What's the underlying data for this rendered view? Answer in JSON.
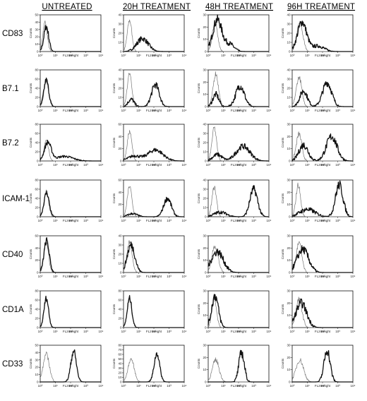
{
  "columns": [
    "UNTREATED",
    "20H TREATMENT",
    "48H TREATMENT",
    "96H TREATMENT"
  ],
  "rows": [
    "CD83",
    "B7.1",
    "B7.2",
    "ICAM-1",
    "CD40",
    "CD1A",
    "CD33"
  ],
  "axis": {
    "xlabel": "FL2-Height",
    "ylabel": "Counts",
    "xticks": [
      "10⁰",
      "10¹",
      "10²",
      "10³",
      "10⁴"
    ]
  },
  "chart_data": {
    "type": "histogram-grid",
    "x_scale": "log",
    "xlim": [
      1,
      10000
    ],
    "colors": {
      "control": "#777777",
      "stained": "#111111"
    },
    "panels": [
      [
        {
          "ymax": 50,
          "yticks": [
            0,
            10,
            20,
            30,
            40,
            50
          ],
          "ctrl": [
            {
              "mu": 0.32,
              "sd": 0.14,
              "h": 40
            }
          ],
          "stain": [
            {
              "mu": 0.4,
              "sd": 0.16,
              "h": 34
            }
          ]
        },
        {
          "ymax": 40,
          "yticks": [
            0,
            10,
            20,
            30,
            40
          ],
          "ctrl": [
            {
              "mu": 0.4,
              "sd": 0.15,
              "h": 34
            }
          ],
          "stain": [
            {
              "mu": 1.25,
              "sd": 0.38,
              "h": 14
            }
          ]
        },
        {
          "ymax": 30,
          "yticks": [
            0,
            10,
            20,
            30
          ],
          "ctrl": [
            {
              "mu": 0.45,
              "sd": 0.17,
              "h": 24
            }
          ],
          "stain": [
            {
              "mu": 0.6,
              "sd": 0.3,
              "h": 26
            },
            {
              "mu": 1.4,
              "sd": 0.3,
              "h": 6
            }
          ]
        },
        {
          "ymax": 40,
          "yticks": [
            0,
            10,
            20,
            30,
            40
          ],
          "ctrl": [
            {
              "mu": 0.5,
              "sd": 0.2,
              "h": 31
            }
          ],
          "stain": [
            {
              "mu": 0.65,
              "sd": 0.3,
              "h": 32
            },
            {
              "mu": 1.7,
              "sd": 0.4,
              "h": 6
            }
          ]
        }
      ],
      [
        {
          "ymax": 80,
          "yticks": [
            0,
            20,
            40,
            60,
            80
          ],
          "ctrl": [
            {
              "mu": 0.4,
              "sd": 0.15,
              "h": 55
            }
          ],
          "stain": [
            {
              "mu": 0.4,
              "sd": 0.16,
              "h": 58
            }
          ]
        },
        {
          "ymax": 40,
          "yticks": [
            0,
            10,
            20,
            30,
            40
          ],
          "ctrl": [
            {
              "mu": 0.4,
              "sd": 0.15,
              "h": 36
            }
          ],
          "stain": [
            {
              "mu": 0.5,
              "sd": 0.2,
              "h": 8
            },
            {
              "mu": 2.1,
              "sd": 0.25,
              "h": 24
            }
          ]
        },
        {
          "ymax": 30,
          "yticks": [
            0,
            10,
            20,
            30
          ],
          "ctrl": [
            {
              "mu": 0.5,
              "sd": 0.17,
              "h": 27
            }
          ],
          "stain": [
            {
              "mu": 0.5,
              "sd": 0.2,
              "h": 10
            },
            {
              "mu": 2.1,
              "sd": 0.28,
              "h": 17
            }
          ]
        },
        {
          "ymax": 40,
          "yticks": [
            0,
            10,
            20,
            30,
            40
          ],
          "ctrl": [
            {
              "mu": 0.45,
              "sd": 0.18,
              "h": 32
            }
          ],
          "stain": [
            {
              "mu": 0.75,
              "sd": 0.25,
              "h": 17
            },
            {
              "mu": 2.3,
              "sd": 0.3,
              "h": 26
            }
          ]
        }
      ],
      [
        {
          "ymax": 80,
          "yticks": [
            0,
            20,
            40,
            60,
            80
          ],
          "ctrl": [
            {
              "mu": 0.4,
              "sd": 0.15,
              "h": 45
            }
          ],
          "stain": [
            {
              "mu": 0.5,
              "sd": 0.22,
              "h": 40
            },
            {
              "mu": 1.6,
              "sd": 0.55,
              "h": 10
            }
          ]
        },
        {
          "ymax": 60,
          "yticks": [
            0,
            20,
            40,
            60
          ],
          "ctrl": [
            {
              "mu": 0.4,
              "sd": 0.15,
              "h": 48
            }
          ],
          "stain": [
            {
              "mu": 0.7,
              "sd": 0.4,
              "h": 8
            },
            {
              "mu": 2.1,
              "sd": 0.5,
              "h": 18
            }
          ]
        },
        {
          "ymax": 40,
          "yticks": [
            0,
            10,
            20,
            30,
            40
          ],
          "ctrl": [
            {
              "mu": 0.4,
              "sd": 0.15,
              "h": 36
            }
          ],
          "stain": [
            {
              "mu": 0.6,
              "sd": 0.3,
              "h": 7
            },
            {
              "mu": 2.3,
              "sd": 0.45,
              "h": 16
            }
          ]
        },
        {
          "ymax": 30,
          "yticks": [
            0,
            10,
            20,
            30
          ],
          "ctrl": [
            {
              "mu": 0.45,
              "sd": 0.18,
              "h": 22
            }
          ],
          "stain": [
            {
              "mu": 0.75,
              "sd": 0.3,
              "h": 13
            },
            {
              "mu": 2.6,
              "sd": 0.35,
              "h": 20
            }
          ]
        }
      ],
      [
        {
          "ymax": 80,
          "yticks": [
            0,
            20,
            40,
            60,
            80
          ],
          "ctrl": [
            {
              "mu": 0.4,
              "sd": 0.15,
              "h": 55
            }
          ],
          "stain": [
            {
              "mu": 0.42,
              "sd": 0.17,
              "h": 52
            }
          ]
        },
        {
          "ymax": 60,
          "yticks": [
            0,
            20,
            40,
            60
          ],
          "ctrl": [
            {
              "mu": 0.4,
              "sd": 0.15,
              "h": 50
            }
          ],
          "stain": [
            {
              "mu": 0.6,
              "sd": 0.3,
              "h": 5
            },
            {
              "mu": 2.9,
              "sd": 0.25,
              "h": 30
            }
          ]
        },
        {
          "ymax": 40,
          "yticks": [
            0,
            10,
            20,
            30,
            40
          ],
          "ctrl": [
            {
              "mu": 0.4,
              "sd": 0.15,
              "h": 32
            }
          ],
          "stain": [
            {
              "mu": 0.8,
              "sd": 0.4,
              "h": 5
            },
            {
              "mu": 3.0,
              "sd": 0.25,
              "h": 30
            }
          ]
        },
        {
          "ymax": 30,
          "yticks": [
            0,
            10,
            20,
            30
          ],
          "ctrl": [
            {
              "mu": 0.4,
              "sd": 0.15,
              "h": 26
            }
          ],
          "stain": [
            {
              "mu": 1.0,
              "sd": 0.5,
              "h": 6
            },
            {
              "mu": 3.1,
              "sd": 0.25,
              "h": 26
            }
          ]
        }
      ],
      [
        {
          "ymax": 60,
          "yticks": [
            0,
            20,
            40,
            60
          ],
          "ctrl": [
            {
              "mu": 0.4,
              "sd": 0.15,
              "h": 50
            }
          ],
          "stain": [
            {
              "mu": 0.42,
              "sd": 0.17,
              "h": 52
            }
          ]
        },
        {
          "ymax": 40,
          "yticks": [
            0,
            10,
            20,
            30,
            40
          ],
          "ctrl": [
            {
              "mu": 0.4,
              "sd": 0.17,
              "h": 33
            }
          ],
          "stain": [
            {
              "mu": 0.5,
              "sd": 0.25,
              "h": 30
            }
          ]
        },
        {
          "ymax": 30,
          "yticks": [
            0,
            10,
            20,
            30
          ],
          "ctrl": [
            {
              "mu": 0.45,
              "sd": 0.2,
              "h": 22
            }
          ],
          "stain": [
            {
              "mu": 0.6,
              "sd": 0.4,
              "h": 17
            }
          ]
        },
        {
          "ymax": 30,
          "yticks": [
            0,
            10,
            20,
            30
          ],
          "ctrl": [
            {
              "mu": 0.45,
              "sd": 0.18,
              "h": 24
            }
          ],
          "stain": [
            {
              "mu": 0.7,
              "sd": 0.38,
              "h": 19
            }
          ]
        }
      ],
      [
        {
          "ymax": 80,
          "yticks": [
            0,
            20,
            40,
            60,
            80
          ],
          "ctrl": [
            {
              "mu": 0.4,
              "sd": 0.15,
              "h": 62
            }
          ],
          "stain": [
            {
              "mu": 0.4,
              "sd": 0.15,
              "h": 64
            }
          ]
        },
        {
          "ymax": 80,
          "yticks": [
            0,
            20,
            40,
            60,
            80
          ],
          "ctrl": [
            {
              "mu": 0.4,
              "sd": 0.15,
              "h": 62
            }
          ],
          "stain": [
            {
              "mu": 0.4,
              "sd": 0.15,
              "h": 64
            }
          ]
        },
        {
          "ymax": 30,
          "yticks": [
            0,
            10,
            20,
            30
          ],
          "ctrl": [
            {
              "mu": 0.4,
              "sd": 0.15,
              "h": 25
            }
          ],
          "stain": [
            {
              "mu": 0.45,
              "sd": 0.22,
              "h": 26
            }
          ]
        },
        {
          "ymax": 30,
          "yticks": [
            0,
            10,
            20,
            30
          ],
          "ctrl": [
            {
              "mu": 0.45,
              "sd": 0.2,
              "h": 23
            }
          ],
          "stain": [
            {
              "mu": 0.6,
              "sd": 0.35,
              "h": 20
            }
          ]
        }
      ],
      [
        {
          "ymax": 50,
          "yticks": [
            0,
            10,
            20,
            30,
            40,
            50
          ],
          "ctrl": [
            {
              "mu": 0.4,
              "sd": 0.2,
              "h": 38
            }
          ],
          "stain": [
            {
              "mu": 2.2,
              "sd": 0.18,
              "h": 42
            }
          ]
        },
        {
          "ymax": 80,
          "yticks": [
            0,
            10,
            20,
            30,
            40,
            50,
            60,
            70,
            80
          ],
          "ctrl": [
            {
              "mu": 0.5,
              "sd": 0.2,
              "h": 50
            }
          ],
          "stain": [
            {
              "mu": 2.2,
              "sd": 0.18,
              "h": 62
            }
          ]
        },
        {
          "ymax": 30,
          "yticks": [
            0,
            10,
            20,
            30
          ],
          "ctrl": [
            {
              "mu": 0.5,
              "sd": 0.22,
              "h": 18
            }
          ],
          "stain": [
            {
              "mu": 2.2,
              "sd": 0.18,
              "h": 24
            }
          ]
        },
        {
          "ymax": 30,
          "yticks": [
            0,
            10,
            20,
            30
          ],
          "ctrl": [
            {
              "mu": 0.5,
              "sd": 0.25,
              "h": 18
            }
          ],
          "stain": [
            {
              "mu": 2.3,
              "sd": 0.2,
              "h": 26
            }
          ]
        }
      ]
    ]
  }
}
